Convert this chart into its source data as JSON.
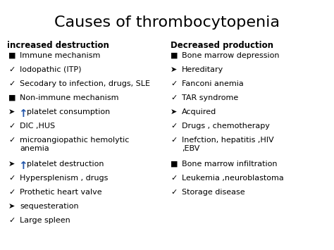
{
  "title": "Causes of thrombocytopenia",
  "bg_color": "#ffffff",
  "title_fontsize": 16,
  "body_fontsize": 8.0,
  "bullet_fontsize": 8.0,
  "header_fontsize": 8.5,
  "left_header": "increased destruction",
  "right_header": "Decreased production",
  "left_items": [
    {
      "bullet": "■",
      "text": "Immune mechanism",
      "blue_arrow": false
    },
    {
      "bullet": "✓",
      "text": "Iodopathic (ITP)",
      "blue_arrow": false
    },
    {
      "bullet": "✓",
      "text": "Secodary to infection, drugs, SLE",
      "blue_arrow": false
    },
    {
      "bullet": "■",
      "text": "Non-immune mechanism",
      "blue_arrow": false
    },
    {
      "bullet": "➤",
      "text": "platelet consumption",
      "blue_arrow": true
    },
    {
      "bullet": "✓",
      "text": "DIC ,HUS",
      "blue_arrow": false
    },
    {
      "bullet": "✓",
      "text": "microangiopathic hemolytic\nanemia",
      "blue_arrow": false
    },
    {
      "bullet": "➤",
      "text": "platelet destruction",
      "blue_arrow": true
    },
    {
      "bullet": "✓",
      "text": "Hypersplenism , drugs",
      "blue_arrow": false
    },
    {
      "bullet": "✓",
      "text": "Prothetic heart valve",
      "blue_arrow": false
    },
    {
      "bullet": "➤",
      "text": "sequesteration",
      "blue_arrow": false
    },
    {
      "bullet": "✓",
      "text": "Large spleen",
      "blue_arrow": false
    }
  ],
  "right_items": [
    {
      "bullet": "■",
      "text": "Bone marrow depression",
      "blue_arrow": false
    },
    {
      "bullet": "➤",
      "text": "Hereditary",
      "blue_arrow": false
    },
    {
      "bullet": "✓",
      "text": "Fanconi anemia",
      "blue_arrow": false
    },
    {
      "bullet": "✓",
      "text": "TAR syndrome",
      "blue_arrow": false
    },
    {
      "bullet": "➤",
      "text": "Acquired",
      "blue_arrow": false
    },
    {
      "bullet": "✓",
      "text": "Drugs , chemotherapy",
      "blue_arrow": false
    },
    {
      "bullet": "✓",
      "text": "Inefction, hepatitis ,HIV\n,EBV",
      "blue_arrow": false
    },
    {
      "bullet": "■",
      "text": "Bone marrow infiltration",
      "blue_arrow": false
    },
    {
      "bullet": "✓",
      "text": "Leukemia ,neuroblastoma",
      "blue_arrow": false
    },
    {
      "bullet": "✓",
      "text": "Storage disease",
      "blue_arrow": false
    }
  ],
  "arrow_color": "#2255aa",
  "text_color": "#000000"
}
